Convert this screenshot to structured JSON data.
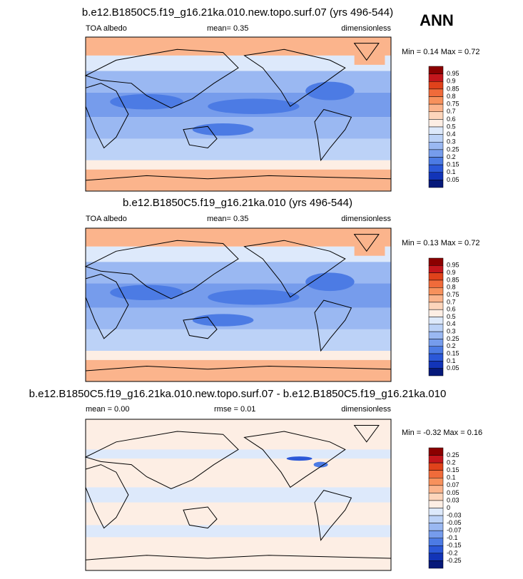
{
  "header": {
    "title": "ANN"
  },
  "panels": [
    {
      "title": "b.e12.B1850C5.f19_g16.21ka.010.new.topo.surf.07 (yrs 496-544)",
      "left": "TOA albedo",
      "center": "mean=  0.35",
      "right": "dimensionless",
      "minmax": "Min =  0.14 Max =  0.72",
      "colorbar_labels": [
        "0.95",
        "0.9",
        "0.85",
        "0.8",
        "0.75",
        "0.7",
        "0.6",
        "0.5",
        "0.4",
        "0.3",
        "0.25",
        "0.2",
        "0.15",
        "0.1",
        "0.05"
      ]
    },
    {
      "title": "b.e12.B1850C5.f19_g16.21ka.010 (yrs 496-544)",
      "left": "TOA albedo",
      "center": "mean=  0.35",
      "right": "dimensionless",
      "minmax": "Min =  0.13 Max =  0.72",
      "colorbar_labels": [
        "0.95",
        "0.9",
        "0.85",
        "0.8",
        "0.75",
        "0.7",
        "0.6",
        "0.5",
        "0.4",
        "0.3",
        "0.25",
        "0.2",
        "0.15",
        "0.1",
        "0.05"
      ]
    },
    {
      "title": "b.e12.B1850C5.f19_g16.21ka.010.new.topo.surf.07 - b.e12.B1850C5.f19_g16.21ka.010",
      "left": "mean =  0.00",
      "center": "rmse =  0.01",
      "right": "dimensionless",
      "minmax": "Min = -0.32 Max =  0.16",
      "colorbar_labels": [
        "0.25",
        "0.2",
        "0.15",
        "0.1",
        "0.07",
        "0.05",
        "0.03",
        "0",
        "-0.03",
        "-0.05",
        "-0.07",
        "-0.1",
        "-0.15",
        "-0.2",
        "-0.25"
      ]
    }
  ],
  "colorbar_colors": [
    "#8b0000",
    "#c4161c",
    "#e0421b",
    "#f06b3a",
    "#f7915c",
    "#fbb48c",
    "#fdd5bb",
    "#fdeee4",
    "#dde9fb",
    "#bcd2f7",
    "#9ab8f2",
    "#769cec",
    "#4c7be4",
    "#2b58d8",
    "#1234b8",
    "#06197a"
  ]
}
